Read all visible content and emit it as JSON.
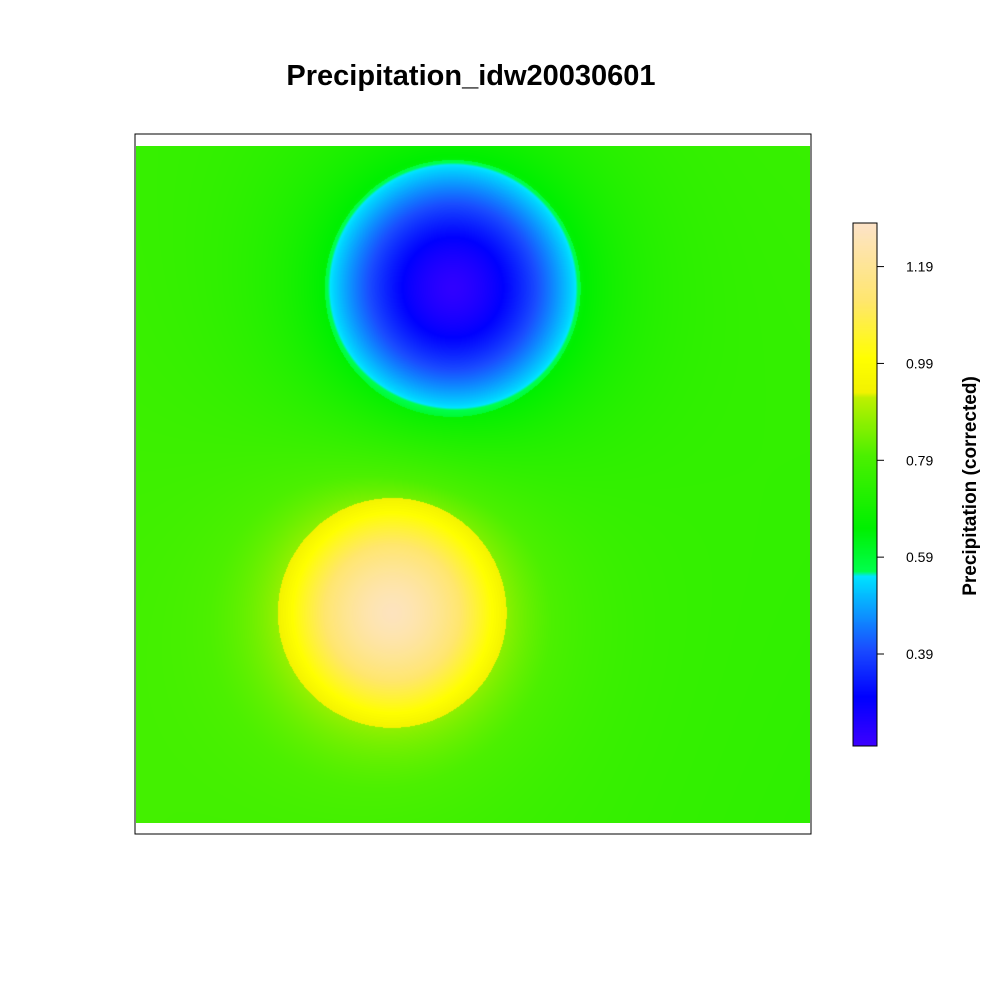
{
  "chart_data": {
    "type": "heatmap",
    "title": "Precipitation_idw20030601",
    "xlabel": "",
    "ylabel": "",
    "colorbar": {
      "label": "Precipitation (corrected)",
      "range": [
        0.2,
        1.28
      ],
      "ticks": [
        0.39,
        0.59,
        0.79,
        0.99,
        1.19
      ],
      "tick_labels": [
        "0.39",
        "0.59",
        "0.79",
        "0.99",
        "1.19"
      ],
      "palette": [
        {
          "value": 0.2,
          "color": "#3d00ff"
        },
        {
          "value": 0.3,
          "color": "#0000ff"
        },
        {
          "value": 0.4,
          "color": "#1a4dff"
        },
        {
          "value": 0.535,
          "color": "#00d4ff"
        },
        {
          "value": 0.55,
          "color": "#00e5ff"
        },
        {
          "value": 0.56,
          "color": "#00ff4d"
        },
        {
          "value": 0.65,
          "color": "#00f000"
        },
        {
          "value": 0.8,
          "color": "#4cf000"
        },
        {
          "value": 0.92,
          "color": "#bff000"
        },
        {
          "value": 0.93,
          "color": "#f2f200"
        },
        {
          "value": 1.0,
          "color": "#ffff00"
        },
        {
          "value": 1.12,
          "color": "#ffe66e"
        },
        {
          "value": 1.28,
          "color": "#fde3c8"
        }
      ]
    },
    "grid": false,
    "legend_position": "right",
    "field": {
      "background": 0.76,
      "features": [
        {
          "name": "low",
          "x": 0.47,
          "y": 0.79,
          "value": 0.22,
          "peak": -0.54,
          "spread": 0.19,
          "halo": 0.09
        },
        {
          "name": "high",
          "x": 0.38,
          "y": 0.31,
          "value": 1.26,
          "peak": 0.5,
          "spread": 0.17,
          "halo": 0.08
        }
      ]
    }
  }
}
